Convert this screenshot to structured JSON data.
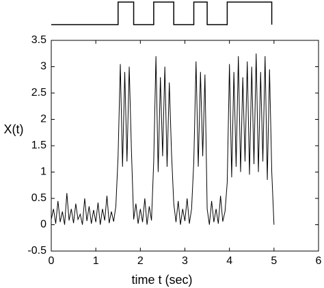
{
  "chart_data": [
    {
      "type": "step",
      "x": [
        0,
        1.5,
        1.5,
        1.85,
        1.85,
        2.3,
        2.3,
        2.75,
        2.75,
        3.2,
        3.2,
        3.5,
        3.5,
        3.95,
        3.95,
        4.95,
        4.95
      ],
      "values": [
        0,
        0,
        1,
        1,
        0,
        0,
        1,
        1,
        0,
        0,
        1,
        1,
        0,
        0,
        1,
        1,
        0
      ],
      "color": "#000000"
    },
    {
      "type": "line",
      "xlabel": "time t (sec)",
      "ylabel": "X(t)",
      "xlim": [
        0,
        6
      ],
      "ylim": [
        -0.5,
        3.5
      ],
      "xticks": [
        0,
        1,
        2,
        3,
        4,
        5,
        6
      ],
      "yticks": [
        -0.5,
        0,
        0.5,
        1,
        1.5,
        2,
        2.5,
        3,
        3.5
      ],
      "color": "#000000",
      "x": [
        0,
        0.05,
        0.1,
        0.15,
        0.2,
        0.25,
        0.3,
        0.35,
        0.4,
        0.45,
        0.5,
        0.55,
        0.6,
        0.65,
        0.7,
        0.75,
        0.8,
        0.85,
        0.9,
        0.95,
        1,
        1.05,
        1.1,
        1.15,
        1.2,
        1.25,
        1.3,
        1.35,
        1.4,
        1.45,
        1.5,
        1.55,
        1.6,
        1.65,
        1.7,
        1.75,
        1.8,
        1.85,
        1.9,
        1.95,
        2,
        2.05,
        2.1,
        2.15,
        2.2,
        2.25,
        2.3,
        2.35,
        2.4,
        2.45,
        2.5,
        2.55,
        2.6,
        2.65,
        2.7,
        2.75,
        2.8,
        2.85,
        2.9,
        2.95,
        3,
        3.05,
        3.1,
        3.15,
        3.2,
        3.25,
        3.3,
        3.35,
        3.4,
        3.45,
        3.5,
        3.55,
        3.6,
        3.65,
        3.7,
        3.75,
        3.8,
        3.85,
        3.9,
        3.95,
        4,
        4.05,
        4.1,
        4.15,
        4.2,
        4.25,
        4.3,
        4.35,
        4.4,
        4.45,
        4.5,
        4.55,
        4.6,
        4.65,
        4.7,
        4.75,
        4.8,
        4.85,
        4.9,
        4.95,
        5
      ],
      "values": [
        0.1,
        0.3,
        0.02,
        0.45,
        0.05,
        0.25,
        0,
        0.6,
        0.08,
        0.3,
        0.03,
        0.4,
        0.1,
        0.2,
        0,
        0.5,
        0.07,
        0.35,
        0.02,
        0.28,
        0.05,
        0.42,
        0,
        0.3,
        0.08,
        0.55,
        0.03,
        0.25,
        0.06,
        0.35,
        1.3,
        3.05,
        1.1,
        2.9,
        1.2,
        3,
        1.4,
        0.1,
        0.4,
        0.02,
        0.3,
        0.05,
        0.5,
        0,
        0.35,
        0.08,
        1.2,
        3.2,
        1,
        2.8,
        1.3,
        3,
        1.1,
        2.7,
        1.35,
        0.4,
        0.05,
        0.45,
        0,
        0.3,
        0.07,
        0.5,
        0.02,
        0.3,
        1.2,
        3.1,
        1.1,
        2.9,
        1.3,
        2.85,
        0.3,
        0,
        0.45,
        0.05,
        0.3,
        0.02,
        0.55,
        0.06,
        0.25,
        0.8,
        3.05,
        0.9,
        2.9,
        1.1,
        3.2,
        1,
        2.8,
        1.2,
        3.1,
        0.95,
        3,
        1.15,
        3.25,
        1,
        2.9,
        1.2,
        3.2,
        0.85,
        2.95,
        1,
        0
      ]
    }
  ]
}
